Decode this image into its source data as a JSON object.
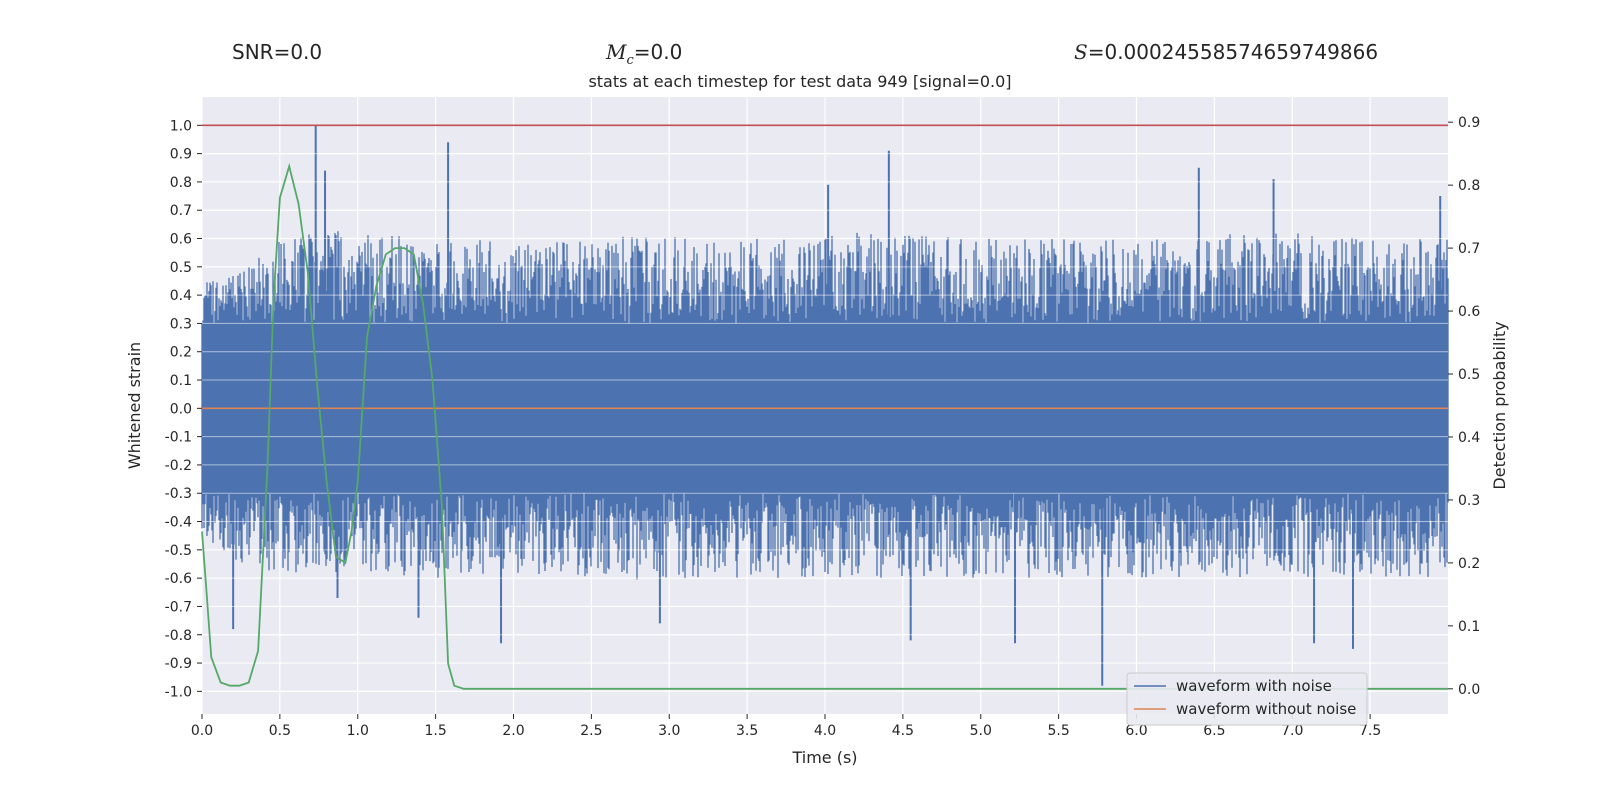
{
  "stats": {
    "snr_label": "SNR",
    "snr_value": "0.0",
    "mc_value": "0.0",
    "s_value": "0.00024558574659749866"
  },
  "chart_data": {
    "type": "line",
    "title": "stats at each timestep for test data 949 [signal=0.0]",
    "xlabel": "Time (s)",
    "ylabel_left": "Whitened strain",
    "ylabel_right": "Detection probability",
    "xlim": [
      0.0,
      8.0
    ],
    "ylim_left": [
      -1.08,
      1.1
    ],
    "ylim_right": [
      -0.04,
      0.94
    ],
    "x_ticks": [
      "0.0",
      "0.5",
      "1.0",
      "1.5",
      "2.0",
      "2.5",
      "3.0",
      "3.5",
      "4.0",
      "4.5",
      "5.0",
      "5.5",
      "6.0",
      "6.5",
      "7.0",
      "7.5"
    ],
    "y_ticks_left": [
      "-1.0",
      "-0.9",
      "-0.8",
      "-0.7",
      "-0.6",
      "-0.5",
      "-0.4",
      "-0.3",
      "-0.2",
      "-0.1",
      "0.0",
      "0.1",
      "0.2",
      "0.3",
      "0.4",
      "0.5",
      "0.6",
      "0.7",
      "0.8",
      "0.9",
      "1.0"
    ],
    "y_ticks_right": [
      "0.0",
      "0.1",
      "0.2",
      "0.3",
      "0.4",
      "0.5",
      "0.6",
      "0.7",
      "0.8",
      "0.9"
    ],
    "grid": true,
    "legend_position": "bottom-right",
    "colors": {
      "noise": "#4c72b0",
      "clean": "#dd8452",
      "probability": "#55a868",
      "threshold": "#c44e52",
      "background": "#eaeaf2",
      "grid": "#ffffff"
    },
    "series": [
      {
        "name": "waveform with noise",
        "axis": "left",
        "envelope": {
          "x": [
            0.0,
            0.25,
            0.5,
            0.75,
            1.0,
            1.5,
            2.0,
            2.5,
            3.0,
            3.5,
            4.0,
            4.5,
            5.0,
            5.5,
            6.0,
            6.5,
            7.0,
            7.5,
            8.0
          ],
          "upper": [
            0.45,
            0.48,
            0.6,
            0.65,
            0.62,
            0.62,
            0.58,
            0.6,
            0.62,
            0.6,
            0.62,
            0.62,
            0.6,
            0.6,
            0.6,
            0.62,
            0.62,
            0.6,
            0.6
          ],
          "lower": [
            -0.45,
            -0.55,
            -0.6,
            -0.58,
            -0.58,
            -0.6,
            -0.58,
            -0.6,
            -0.62,
            -0.6,
            -0.6,
            -0.6,
            -0.6,
            -0.6,
            -0.6,
            -0.6,
            -0.6,
            -0.6,
            -0.6
          ]
        },
        "spikes": [
          {
            "x": 0.73,
            "y": 1.0
          },
          {
            "x": 0.79,
            "y": 0.84
          },
          {
            "x": 1.58,
            "y": 0.94
          },
          {
            "x": 4.02,
            "y": 0.79
          },
          {
            "x": 4.41,
            "y": 0.91
          },
          {
            "x": 6.4,
            "y": 0.85
          },
          {
            "x": 6.88,
            "y": 0.81
          },
          {
            "x": 7.95,
            "y": 0.75
          },
          {
            "x": 0.2,
            "y": -0.78
          },
          {
            "x": 0.87,
            "y": -0.67
          },
          {
            "x": 1.39,
            "y": -0.74
          },
          {
            "x": 1.92,
            "y": -0.83
          },
          {
            "x": 2.94,
            "y": -0.76
          },
          {
            "x": 4.55,
            "y": -0.82
          },
          {
            "x": 5.22,
            "y": -0.83
          },
          {
            "x": 5.78,
            "y": -0.98
          },
          {
            "x": 7.14,
            "y": -0.83
          },
          {
            "x": 7.39,
            "y": -0.85
          }
        ]
      },
      {
        "name": "waveform without noise",
        "axis": "left",
        "x": [
          0.0,
          8.0
        ],
        "y": [
          0.0,
          0.0
        ]
      },
      {
        "name": "detection probability",
        "axis": "right",
        "x": [
          0.0,
          0.03,
          0.06,
          0.12,
          0.18,
          0.24,
          0.3,
          0.36,
          0.42,
          0.46,
          0.5,
          0.56,
          0.62,
          0.68,
          0.74,
          0.8,
          0.86,
          0.92,
          0.96,
          1.0,
          1.06,
          1.12,
          1.18,
          1.24,
          1.3,
          1.36,
          1.42,
          1.48,
          1.54,
          1.58,
          1.62,
          1.68,
          8.0
        ],
        "y": [
          0.25,
          0.15,
          0.05,
          0.01,
          0.005,
          0.005,
          0.01,
          0.06,
          0.35,
          0.62,
          0.78,
          0.83,
          0.77,
          0.66,
          0.48,
          0.33,
          0.21,
          0.2,
          0.25,
          0.33,
          0.56,
          0.64,
          0.69,
          0.7,
          0.7,
          0.69,
          0.61,
          0.49,
          0.29,
          0.04,
          0.005,
          0.0,
          0.0
        ]
      },
      {
        "name": "threshold",
        "axis": "left",
        "x": [
          0.0,
          8.0
        ],
        "y": [
          1.0,
          1.0
        ]
      }
    ],
    "legend": [
      "waveform with noise",
      "waveform without noise"
    ]
  }
}
